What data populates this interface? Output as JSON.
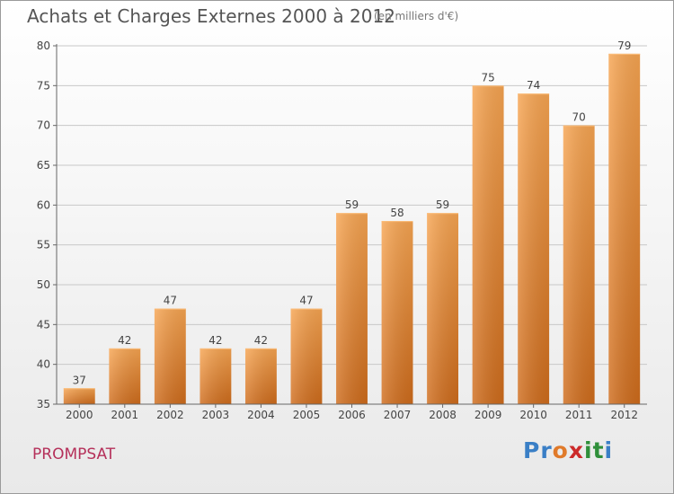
{
  "header": {
    "title": "Achats et Charges Externes 2000 à 2012",
    "subtitle": "(en milliers d'€)"
  },
  "footer": {
    "commune": "PROMPSAT",
    "logo_letters": [
      {
        "ch": "P",
        "color": "#3a7fc6"
      },
      {
        "ch": "r",
        "color": "#3a7fc6"
      },
      {
        "ch": "o",
        "color": "#e07a2a"
      },
      {
        "ch": "x",
        "color": "#cc2a2a"
      },
      {
        "ch": "i",
        "color": "#2f8f3a"
      },
      {
        "ch": "t",
        "color": "#2f8f3a"
      },
      {
        "ch": "i",
        "color": "#3a7fc6"
      }
    ]
  },
  "chart_data": {
    "type": "bar",
    "title": "Achats et Charges Externes 2000 à 2012",
    "subtitle": "(en milliers d'€)",
    "categories": [
      "2000",
      "2001",
      "2002",
      "2003",
      "2004",
      "2005",
      "2006",
      "2007",
      "2008",
      "2009",
      "2010",
      "2011",
      "2012"
    ],
    "values": [
      37,
      42,
      47,
      42,
      42,
      47,
      59,
      58,
      59,
      75,
      74,
      70,
      79
    ],
    "ylim": [
      35,
      80
    ],
    "yticks": [
      35,
      40,
      45,
      50,
      55,
      60,
      65,
      70,
      75,
      80
    ],
    "grid": true,
    "bar_color": "#f0913a",
    "data_labels": true
  }
}
